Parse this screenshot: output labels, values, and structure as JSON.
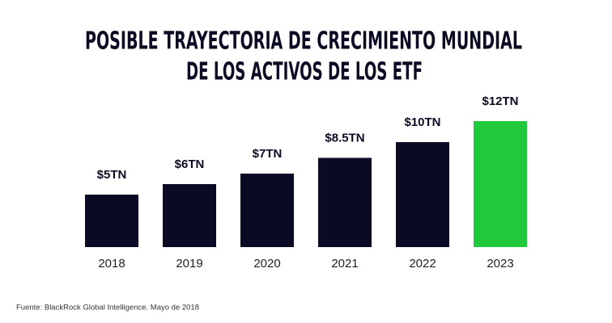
{
  "chart_data": {
    "type": "bar",
    "title": [
      "POSIBLE TRAYECTORIA DE CRECIMIENTO MUNDIAL",
      "DE LOS ACTIVOS DE LOS ETF"
    ],
    "categories": [
      "2018",
      "2019",
      "2020",
      "2021",
      "2022",
      "2023"
    ],
    "values": [
      5,
      6,
      7,
      8.5,
      10,
      12
    ],
    "value_labels": [
      "$5TN",
      "$6TN",
      "$7TN",
      "$8.5TN",
      "$10TN",
      "$12TN"
    ],
    "colors": [
      "#0a0a24",
      "#0a0a24",
      "#0a0a24",
      "#0a0a24",
      "#0a0a24",
      "#20c93b"
    ],
    "source": "Fuente: BlackRock Global Intelligence. Mayo de 2018"
  }
}
